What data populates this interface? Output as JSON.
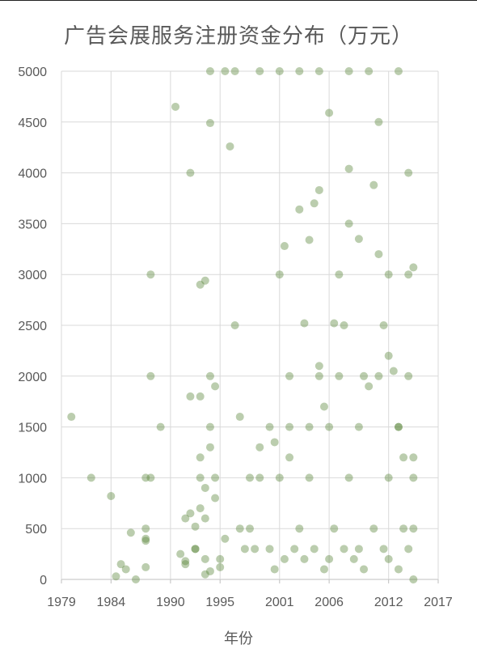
{
  "chart_data": {
    "type": "scatter",
    "title": "广告会展服务注册资金分布（万元）",
    "xlabel": "年份",
    "ylabel": "",
    "xlim": [
      1979,
      2017
    ],
    "ylim": [
      0,
      5000
    ],
    "x_ticks": [
      1979,
      1984,
      1990,
      1995,
      2001,
      2006,
      2012,
      2017
    ],
    "y_ticks": [
      0,
      500,
      1000,
      1500,
      2000,
      2500,
      3000,
      3500,
      4000,
      4500,
      5000
    ],
    "grid": true,
    "marker_color": "#548235",
    "marker_opacity": 0.4,
    "series": [
      {
        "x": [
          1980,
          1982,
          1984,
          1984.5,
          1985,
          1985.5,
          1986,
          1986.5,
          1987.5,
          1987.5,
          1987.5,
          1987.5,
          1987.5,
          1988,
          1988,
          1989,
          1988,
          1990.5,
          1991,
          1991.5,
          1991.5,
          1992,
          1992,
          1992.5,
          1992.5,
          1993,
          1993,
          1993.5,
          1993.5,
          1994,
          1994,
          1994,
          1994.5,
          1993,
          1992,
          1991.5,
          1993.5,
          1994,
          1993.5,
          1992.5,
          1993,
          1994,
          1994.5,
          1993,
          1993.5,
          1994.5,
          1995,
          1995.5,
          1996,
          1996.5,
          1997,
          1997,
          1998,
          1998.5,
          1999,
          1999,
          2000,
          2000.5,
          2001,
          2001,
          2001.5,
          2002,
          2002,
          2003,
          2003.5,
          2004,
          2004,
          2004.5,
          2005,
          2005,
          2005.5,
          2006,
          2006.5,
          2007,
          2007.5,
          2008,
          2008,
          2009,
          2009.5,
          2010,
          2010.5,
          2011,
          2011,
          2011.5,
          2012,
          2012,
          2012.5,
          2013,
          2013.5,
          2014,
          2014,
          2014.5,
          2014.5,
          2014.5,
          2014.5,
          2014.5,
          1994,
          1999,
          2003,
          2005,
          2008,
          2010,
          2013,
          1996.5,
          1995.5,
          2001,
          2005,
          2007,
          2011,
          2014,
          2002,
          2006,
          2009,
          2013,
          2004,
          2008,
          2012,
          1998,
          2003,
          2006.5,
          2010.5,
          2013.5,
          1997.5,
          2000,
          2002.5,
          2004.5,
          2007.5,
          2009,
          2011.5,
          2014,
          1995,
          2001.5,
          2003.5,
          2006,
          2008.5,
          2012,
          2000.5,
          2005.5,
          2009.5,
          2013
        ],
        "y": [
          1600,
          1000,
          820,
          30,
          150,
          100,
          460,
          0,
          1000,
          380,
          120,
          500,
          400,
          3000,
          2000,
          1500,
          1000,
          4650,
          250,
          180,
          600,
          4000,
          1800,
          520,
          300,
          2900,
          1200,
          2940,
          900,
          1500,
          4490,
          2000,
          1900,
          1000,
          650,
          150,
          200,
          80,
          50,
          300,
          700,
          1300,
          1000,
          1800,
          600,
          800,
          120,
          400,
          4260,
          2500,
          1600,
          500,
          1000,
          300,
          1300,
          1000,
          1500,
          1350,
          3000,
          1000,
          3280,
          2000,
          1200,
          3640,
          2520,
          3340,
          1500,
          3700,
          3830,
          2100,
          1700,
          4590,
          2520,
          3000,
          2500,
          4040,
          3500,
          3350,
          2000,
          1900,
          3880,
          3200,
          4500,
          2500,
          3000,
          2200,
          2050,
          1500,
          1200,
          4000,
          3000,
          3070,
          1200,
          1000,
          500,
          0,
          5000,
          5000,
          5000,
          5000,
          5000,
          5000,
          5000,
          5000,
          5000,
          5000,
          2000,
          2000,
          2000,
          2000,
          1500,
          1500,
          1500,
          1500,
          1000,
          1000,
          1000,
          500,
          500,
          500,
          500,
          500,
          300,
          300,
          300,
          300,
          300,
          300,
          300,
          300,
          200,
          200,
          200,
          200,
          200,
          200,
          100,
          100,
          100,
          100
        ]
      }
    ]
  }
}
